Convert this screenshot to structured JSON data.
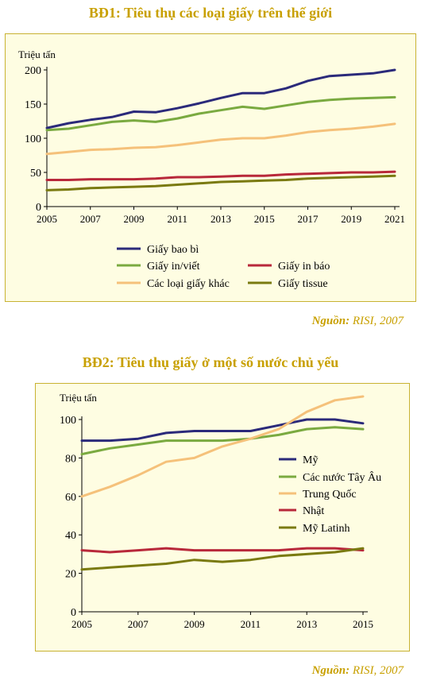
{
  "colors": {
    "title": "#c8a000",
    "panel_bg": "#fefde2",
    "panel_border": "#c8b232"
  },
  "chart_data": [
    {
      "type": "line",
      "title": "BĐ1: Tiêu thụ các loại giấy trên thế giới",
      "ylabel": "Triệu tấn",
      "ylim": [
        0,
        200
      ],
      "yticks": [
        0,
        50,
        100,
        150,
        200
      ],
      "xlim": [
        2005,
        2021
      ],
      "xticks": [
        2005,
        2007,
        2009,
        2011,
        2013,
        2015,
        2017,
        2019,
        2021
      ],
      "x": [
        2005,
        2006,
        2007,
        2008,
        2009,
        2010,
        2011,
        2012,
        2013,
        2014,
        2015,
        2016,
        2017,
        2018,
        2019,
        2020,
        2021
      ],
      "series": [
        {
          "name": "Giấy bao bì",
          "color": "#2b2a7a",
          "values": [
            115,
            122,
            127,
            131,
            139,
            138,
            144,
            151,
            159,
            166,
            166,
            173,
            184,
            191,
            193,
            195,
            200
          ]
        },
        {
          "name": "Giấy in/viết",
          "color": "#7aaa40",
          "values": [
            112,
            114,
            119,
            124,
            126,
            124,
            129,
            136,
            141,
            146,
            143,
            148,
            153,
            156,
            158,
            159,
            160
          ]
        },
        {
          "name": "Giấy in báo",
          "color": "#b8283a",
          "values": [
            39,
            39,
            40,
            40,
            40,
            41,
            43,
            43,
            44,
            45,
            45,
            47,
            48,
            49,
            50,
            50,
            51
          ]
        },
        {
          "name": "Các loại giấy khác",
          "color": "#f5c17a",
          "values": [
            77,
            80,
            83,
            84,
            86,
            87,
            90,
            94,
            98,
            100,
            100,
            104,
            109,
            112,
            114,
            117,
            121
          ]
        },
        {
          "name": "Giấy tissue",
          "color": "#7a7a10",
          "values": [
            24,
            25,
            27,
            28,
            29,
            30,
            32,
            34,
            36,
            37,
            38,
            39,
            41,
            42,
            43,
            44,
            45
          ]
        }
      ],
      "legend_placement": "bottom",
      "source_label": "Nguồn:",
      "source_text": "RISI, 2007"
    },
    {
      "type": "line",
      "title": "BĐ2: Tiêu thụ giấy ở một số nước chủ yếu",
      "ylabel": "Triệu tấn",
      "ylim": [
        0,
        100
      ],
      "yticks": [
        0,
        20,
        40,
        60,
        80,
        100
      ],
      "xlim": [
        2005,
        2015
      ],
      "xticks": [
        2005,
        2007,
        2009,
        2011,
        2013,
        2015
      ],
      "x": [
        2005,
        2006,
        2007,
        2008,
        2009,
        2010,
        2011,
        2012,
        2013,
        2014,
        2015
      ],
      "series": [
        {
          "name": "Mỹ",
          "color": "#2b2a7a",
          "values": [
            89,
            89,
            90,
            93,
            94,
            94,
            94,
            97,
            100,
            100,
            98
          ]
        },
        {
          "name": "Các nước Tây Âu",
          "color": "#7aaa40",
          "values": [
            82,
            85,
            87,
            89,
            89,
            89,
            90,
            92,
            95,
            96,
            95
          ]
        },
        {
          "name": "Trung Quốc",
          "color": "#f5c17a",
          "values": [
            60,
            65,
            71,
            78,
            80,
            86,
            90,
            95,
            104,
            110,
            112
          ]
        },
        {
          "name": "Nhật",
          "color": "#b8283a",
          "values": [
            32,
            31,
            32,
            33,
            32,
            32,
            32,
            32,
            33,
            33,
            32
          ]
        },
        {
          "name": "Mỹ Latinh",
          "color": "#7a7a10",
          "values": [
            22,
            23,
            24,
            25,
            27,
            26,
            27,
            29,
            30,
            31,
            33
          ]
        }
      ],
      "legend_placement": "right",
      "source_label": "Nguồn:",
      "source_text": "RISI, 2007"
    }
  ]
}
